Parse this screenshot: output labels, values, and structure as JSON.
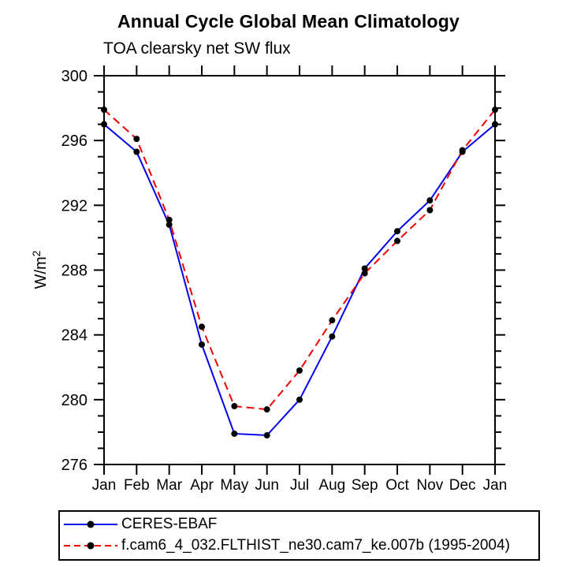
{
  "chart_data": {
    "type": "line",
    "title": "Annual Cycle Global Mean Climatology",
    "subtitle": "TOA clearsky net SW flux",
    "ylabel_base": "W/m",
    "ylabel_sup": "2",
    "categories": [
      "Jan",
      "Feb",
      "Mar",
      "Apr",
      "May",
      "Jun",
      "Jul",
      "Aug",
      "Sep",
      "Oct",
      "Nov",
      "Dec",
      "Jan"
    ],
    "ylim": [
      276,
      300
    ],
    "ytick_major": [
      276,
      280,
      284,
      288,
      292,
      296,
      300
    ],
    "ytick_minor_step": 1,
    "grid": false,
    "legend_position": "bottom-left-box",
    "axis_color": "#000000",
    "marker_color": "#000000",
    "background_color": "#ffffff",
    "series": [
      {
        "name": "CERES-EBAF",
        "color": "#0000ee",
        "line_style": "solid",
        "values": [
          297.0,
          295.3,
          290.8,
          283.4,
          277.9,
          277.8,
          280.0,
          283.9,
          288.1,
          290.4,
          292.3,
          295.3,
          297.0
        ]
      },
      {
        "name": "f.cam6_4_032.FLTHIST_ne30.cam7_ke.007b (1995-2004)",
        "color": "#ee0000",
        "line_style": "dashed",
        "values": [
          297.9,
          296.1,
          291.1,
          284.5,
          279.6,
          279.4,
          281.8,
          284.9,
          287.8,
          289.8,
          291.7,
          295.4,
          297.9
        ]
      }
    ]
  }
}
